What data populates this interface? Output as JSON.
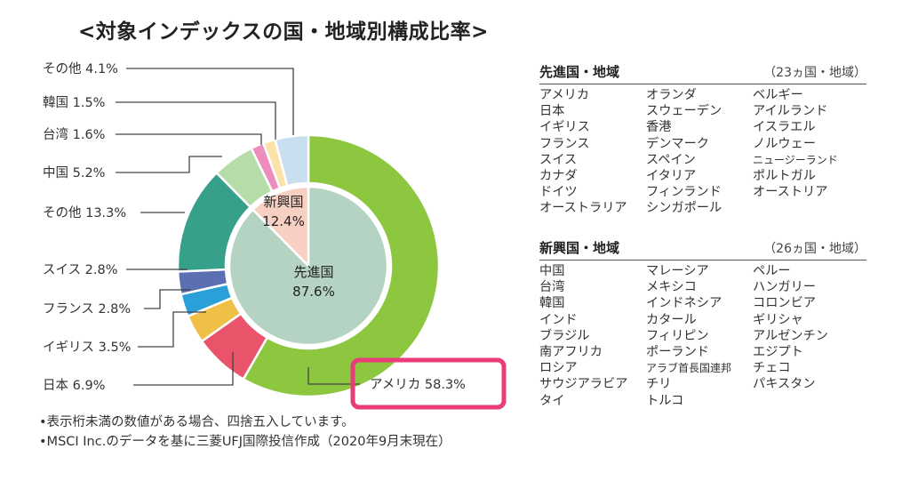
{
  "title": "<対象インデックスの国・地域別構成比率>",
  "chart_data": {
    "type": "pie",
    "title": "<対象インデックスの国・地域別構成比率>",
    "inner": [
      {
        "name": "先進国",
        "value": 87.6,
        "label": "87.6%",
        "color": "#b5d3c2"
      },
      {
        "name": "新興国",
        "value": 12.4,
        "label": "12.4%",
        "color": "#f8cfc3"
      }
    ],
    "outer": [
      {
        "name": "アメリカ",
        "value": 58.3,
        "label": "アメリカ 58.3%",
        "color": "#8dc63f"
      },
      {
        "name": "日本",
        "value": 6.9,
        "label": "日本 6.9%",
        "color": "#e9546b"
      },
      {
        "name": "イギリス",
        "value": 3.5,
        "label": "イギリス 3.5%",
        "color": "#f0bf45"
      },
      {
        "name": "フランス",
        "value": 2.8,
        "label": "フランス 2.8%",
        "color": "#2b9fd8"
      },
      {
        "name": "スイス",
        "value": 2.8,
        "label": "スイス 2.8%",
        "color": "#5b6fb2"
      },
      {
        "name": "その他",
        "value": 13.3,
        "label": "その他 13.3%",
        "color": "#36a08b"
      },
      {
        "name": "中国",
        "value": 5.2,
        "label": "中国 5.2%",
        "color": "#b6dcaa"
      },
      {
        "name": "台湾",
        "value": 1.6,
        "label": "台湾 1.6%",
        "color": "#ec8dbd"
      },
      {
        "name": "韓国",
        "value": 1.5,
        "label": "韓国 1.5%",
        "color": "#fbe2a9"
      },
      {
        "name": "その他",
        "value": 4.1,
        "label": "その他 4.1%",
        "color": "#c8dff0"
      }
    ],
    "highlight": "アメリカ 58.3%",
    "highlight_color": "#ea3c7a"
  },
  "developed": {
    "title": "先進国・地域",
    "count": "（23ヵ国・地域）",
    "columns": [
      [
        "アメリカ",
        "日本",
        "イギリス",
        "フランス",
        "スイス",
        "カナダ",
        "ドイツ",
        "オーストラリア"
      ],
      [
        "オランダ",
        "スウェーデン",
        "香港",
        "デンマーク",
        "スペイン",
        "イタリア",
        "フィンランド",
        "シンガポール"
      ],
      [
        "ベルギー",
        "アイルランド",
        "イスラエル",
        "ノルウェー",
        "ニュージーランド",
        "ポルトガル",
        "オーストリア"
      ]
    ]
  },
  "emerging": {
    "title": "新興国・地域",
    "count": "（26ヵ国・地域）",
    "columns": [
      [
        "中国",
        "台湾",
        "韓国",
        "インド",
        "ブラジル",
        "南アフリカ",
        "ロシア",
        "サウジアラビア",
        "タイ"
      ],
      [
        "マレーシア",
        "メキシコ",
        "インドネシア",
        "カタール",
        "フィリピン",
        "ポーランド",
        "アラブ首長国連邦",
        "チリ",
        "トルコ"
      ],
      [
        "ペルー",
        "ハンガリー",
        "コロンビア",
        "ギリシャ",
        "アルゼンチン",
        "エジプト",
        "チェコ",
        "パキスタン"
      ]
    ]
  },
  "notes": [
    "•表示桁未満の数値がある場合、四捨五入しています。",
    "•MSCI Inc.のデータを基に三菱UFJ国際投信作成（2020年9月末現在）"
  ]
}
